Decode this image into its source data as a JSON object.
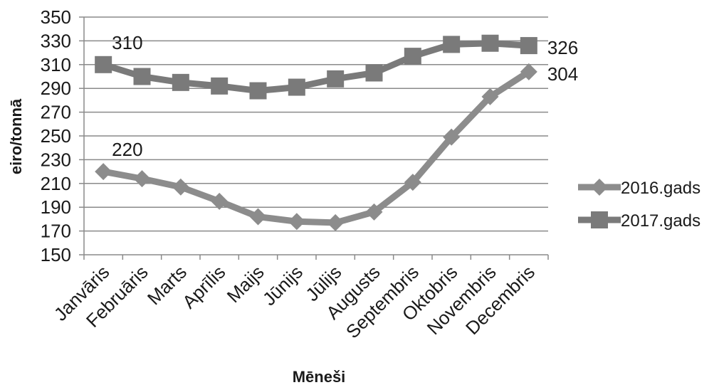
{
  "chart_data": {
    "type": "line",
    "xlabel": "Mēneši",
    "ylabel": "eiro/tonnā",
    "ylim": [
      150,
      350
    ],
    "yticks": [
      150,
      170,
      190,
      210,
      230,
      250,
      270,
      290,
      310,
      330,
      350
    ],
    "grid": true,
    "legend_position": "right",
    "categories": [
      "Janvāris",
      "Februāris",
      "Marts",
      "Aprīlis",
      "Maijs",
      "Jūnijs",
      "Jūlijs",
      "Augusts",
      "Septembris",
      "Oktobris",
      "Novembris",
      "Decembris"
    ],
    "series": [
      {
        "name": "2016.gads",
        "marker": "diamond",
        "color": "#8c8c8c",
        "values": [
          220,
          214,
          207,
          195,
          182,
          178,
          177,
          186,
          211,
          249,
          283,
          304
        ]
      },
      {
        "name": "2017.gads",
        "marker": "square",
        "color": "#7a7a7a",
        "values": [
          310,
          300,
          295,
          292,
          288,
          291,
          298,
          303,
          317,
          327,
          328,
          326
        ]
      }
    ],
    "annotations": [
      {
        "series": 0,
        "index": 0,
        "text": "220"
      },
      {
        "series": 0,
        "index": 11,
        "text": "304"
      },
      {
        "series": 1,
        "index": 0,
        "text": "310"
      },
      {
        "series": 1,
        "index": 11,
        "text": "326"
      }
    ]
  }
}
